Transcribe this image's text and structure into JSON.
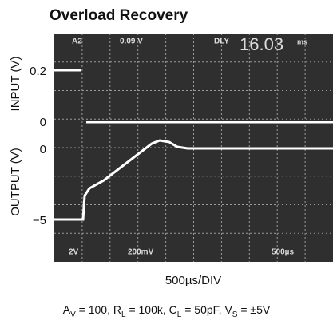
{
  "title": "Overload Recovery",
  "screen": {
    "top_labels": [
      "A2",
      "0.09 V",
      "DLY"
    ],
    "readout": "16.03",
    "readout_unit": "ms",
    "bottom_labels": [
      "2V",
      "200mV",
      "500µs"
    ]
  },
  "axes": {
    "input_label": "INPUT (V)",
    "output_label": "OUTPUT (V)",
    "input_ticks": [
      "0.2",
      "0"
    ],
    "output_ticks": [
      "0",
      "−5"
    ],
    "x_label": "500µs/DIV"
  },
  "conditions": [
    {
      "symbol": "A",
      "subscript": "V",
      "value": " = 100, "
    },
    {
      "symbol": "R",
      "subscript": "L",
      "value": " = 100k, "
    },
    {
      "symbol": "C",
      "subscript": "L",
      "value": " = 50pF, "
    },
    {
      "symbol": "V",
      "subscript": "S",
      "value": " = ±5V"
    }
  ]
}
